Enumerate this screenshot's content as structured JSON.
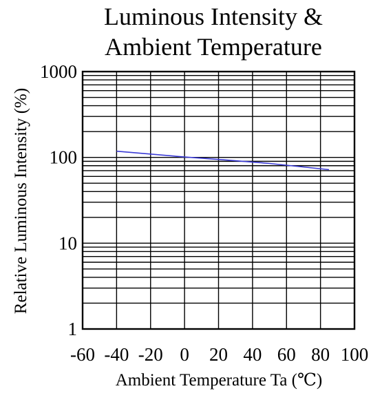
{
  "chart_data": {
    "type": "line",
    "title": [
      "Luminous Intensity &",
      "Ambient Temperature"
    ],
    "xlabel": "Ambient Temperature Ta (℃)",
    "ylabel": "Relative Luminous Intensity (%)",
    "xlim": [
      -60,
      100
    ],
    "ylim": [
      1,
      1000
    ],
    "yscale": "log",
    "grid": true,
    "x_ticks": [
      -60,
      -40,
      -20,
      0,
      20,
      40,
      60,
      80,
      100
    ],
    "x_tick_labels": [
      "-60",
      "-40",
      "-20",
      "0",
      "20",
      "40",
      "60",
      "80",
      "100"
    ],
    "y_ticks": [
      1,
      10,
      100,
      1000
    ],
    "y_tick_labels": [
      "1",
      "10",
      "100",
      "1000"
    ],
    "series": [
      {
        "color": "#3b3bd6",
        "x": [
          -40,
          0,
          25,
          50,
          85
        ],
        "y": [
          118,
          101,
          93,
          85,
          72
        ]
      }
    ]
  }
}
